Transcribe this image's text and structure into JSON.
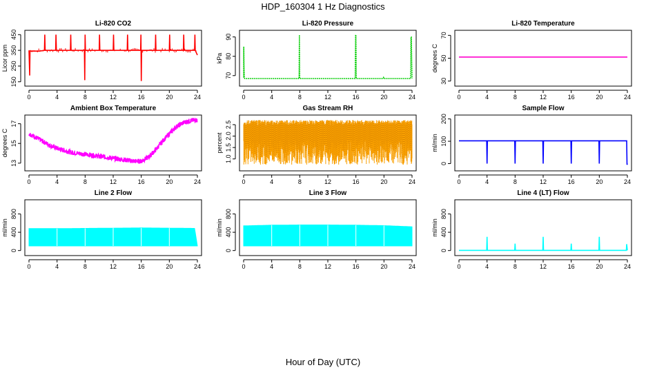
{
  "title": "HDP_160304  1 Hz Diagnostics",
  "xlabel": "Hour of Day (UTC)",
  "chart_data": [
    {
      "type": "line",
      "title": "Li-820 CO2",
      "ylabel": "Licor ppm",
      "color": "#ff0000",
      "xlim": [
        0,
        24
      ],
      "ylim": [
        140,
        460
      ],
      "xticks": [
        0,
        4,
        8,
        12,
        16,
        20,
        24
      ],
      "yticks": [
        150,
        250,
        350,
        450
      ],
      "x": [
        0,
        0.1,
        0.15,
        0.2,
        1.5,
        2.2,
        2.25,
        2.3,
        3.8,
        3.85,
        3.9,
        5.9,
        5.95,
        6.0,
        7.9,
        7.95,
        8.0,
        8.05,
        10.0,
        10.05,
        10.1,
        12.0,
        12.05,
        12.1,
        14.0,
        14.05,
        14.1,
        15.9,
        15.95,
        16.0,
        16.05,
        18.0,
        18.05,
        18.1,
        20.0,
        20.05,
        20.1,
        22.0,
        22.05,
        22.1,
        23.5,
        23.6,
        23.65,
        23.7,
        24
      ],
      "y": [
        350,
        190,
        350,
        345,
        345,
        350,
        450,
        350,
        350,
        450,
        350,
        350,
        450,
        350,
        350,
        160,
        450,
        350,
        350,
        450,
        350,
        350,
        450,
        350,
        350,
        450,
        350,
        350,
        450,
        155,
        350,
        350,
        450,
        350,
        350,
        450,
        350,
        350,
        450,
        350,
        350,
        350,
        450,
        350,
        320
      ]
    },
    {
      "type": "line",
      "title": "Li-820 Pressure",
      "ylabel": "kPa",
      "color": "#00cc00",
      "xlim": [
        0,
        24
      ],
      "ylim": [
        66,
        92
      ],
      "xticks": [
        0,
        4,
        8,
        12,
        16,
        20,
        24
      ],
      "yticks": [
        70,
        80,
        90
      ],
      "x": [
        0,
        0.02,
        0.05,
        0.1,
        0.15,
        7.9,
        7.95,
        8.0,
        8.05,
        15.9,
        15.95,
        16.0,
        16.05,
        19.9,
        19.95,
        20.0,
        23.8,
        23.85,
        23.9,
        24
      ],
      "y": [
        69,
        85,
        76,
        69,
        68.5,
        68.5,
        91,
        68.5,
        68.5,
        68.5,
        91,
        91,
        68.5,
        68.5,
        69,
        68.5,
        68.5,
        90,
        90,
        68.5
      ]
    },
    {
      "type": "line",
      "title": "Li-820 Temperature",
      "ylabel": "degrees C",
      "color": "#ff00cc",
      "xlim": [
        0,
        24
      ],
      "ylim": [
        28,
        72
      ],
      "xticks": [
        0,
        4,
        8,
        12,
        16,
        20,
        24
      ],
      "yticks": [
        30,
        50,
        70
      ],
      "x": [
        0,
        24
      ],
      "y": [
        51,
        51
      ]
    },
    {
      "type": "line",
      "title": "Ambient Box Temperature",
      "ylabel": "degrees C",
      "color": "#ff00ff",
      "xlim": [
        0,
        24
      ],
      "ylim": [
        12.5,
        17.6
      ],
      "xticks": [
        0,
        4,
        8,
        12,
        16,
        20,
        24
      ],
      "yticks": [
        13,
        15,
        17
      ],
      "x": [
        0,
        1,
        2,
        3,
        4,
        5,
        6,
        7,
        8,
        9,
        10,
        11,
        12,
        13,
        14,
        15,
        16,
        17,
        18,
        19,
        20,
        21,
        22,
        23,
        24
      ],
      "y": [
        16.0,
        15.6,
        15.2,
        14.8,
        14.5,
        14.3,
        14.1,
        14.0,
        13.9,
        13.8,
        13.7,
        13.6,
        13.5,
        13.4,
        13.3,
        13.2,
        13.2,
        13.6,
        14.3,
        15.2,
        16.0,
        16.7,
        17.1,
        17.3,
        17.4
      ],
      "noise": 0.25
    },
    {
      "type": "line",
      "title": "Gas Stream RH",
      "ylabel": "percent",
      "color": "#ffa500",
      "xlim": [
        0,
        24
      ],
      "ylim": [
        0.6,
        2.8
      ],
      "xticks": [
        0,
        4,
        8,
        12,
        16,
        20,
        24
      ],
      "yticks": [
        1.0,
        1.5,
        2.0,
        2.5
      ],
      "x": [
        0,
        24
      ],
      "y": [
        1.7,
        1.7
      ],
      "band": [
        0.75,
        2.7
      ]
    },
    {
      "type": "line",
      "title": "Sample Flow",
      "ylabel": "ml/min",
      "color": "#0000ff",
      "xlim": [
        0,
        24
      ],
      "ylim": [
        -20,
        205
      ],
      "xticks": [
        0,
        4,
        8,
        12,
        16,
        20,
        24
      ],
      "yticks": [
        0,
        100,
        200
      ],
      "x": [
        0,
        3.95,
        4.0,
        4.05,
        7.95,
        8.0,
        8.05,
        11.95,
        12.0,
        12.05,
        15.95,
        16.0,
        16.05,
        19.95,
        20.0,
        20.05,
        23.9,
        23.95,
        24
      ],
      "y": [
        102,
        102,
        0,
        102,
        102,
        0,
        102,
        102,
        0,
        102,
        102,
        0,
        102,
        102,
        0,
        102,
        102,
        -5,
        0
      ]
    },
    {
      "type": "area",
      "title": "Line 2 Flow",
      "ylabel": "ml/min",
      "color": "#00ffff",
      "xlim": [
        0,
        24
      ],
      "ylim": [
        -50,
        1050
      ],
      "xticks": [
        0,
        4,
        8,
        12,
        16,
        20,
        24
      ],
      "yticks": [
        0,
        400,
        800
      ],
      "x": [
        0,
        4,
        8,
        12,
        16,
        20,
        23.6,
        24
      ],
      "y": [
        480,
        480,
        485,
        490,
        495,
        490,
        485,
        100
      ],
      "band_low": 100
    },
    {
      "type": "area",
      "title": "Line 3 Flow",
      "ylabel": "ml/min",
      "color": "#00ffff",
      "xlim": [
        0,
        24
      ],
      "ylim": [
        -50,
        1050
      ],
      "xticks": [
        0,
        4,
        8,
        12,
        16,
        20,
        24
      ],
      "yticks": [
        0,
        400,
        800
      ],
      "x": [
        0,
        4,
        8,
        12,
        16,
        20,
        24
      ],
      "y": [
        540,
        555,
        560,
        560,
        555,
        545,
        520
      ],
      "band_low": 100
    },
    {
      "type": "line",
      "title": "Line 4 (LT) Flow",
      "ylabel": "ml/min",
      "color": "#00ffff",
      "xlim": [
        0,
        24
      ],
      "ylim": [
        -50,
        1050
      ],
      "xticks": [
        0,
        4,
        8,
        12,
        16,
        20,
        24
      ],
      "yticks": [
        0,
        400,
        800
      ],
      "x": [
        0,
        3.95,
        4.0,
        4.05,
        7.95,
        8.0,
        8.05,
        11.95,
        12.0,
        12.05,
        15.95,
        16.0,
        16.05,
        19.95,
        20.0,
        20.05,
        23.85,
        23.9,
        24
      ],
      "y": [
        5,
        5,
        300,
        5,
        5,
        150,
        5,
        5,
        300,
        5,
        5,
        150,
        5,
        5,
        300,
        5,
        5,
        140,
        5
      ]
    }
  ]
}
